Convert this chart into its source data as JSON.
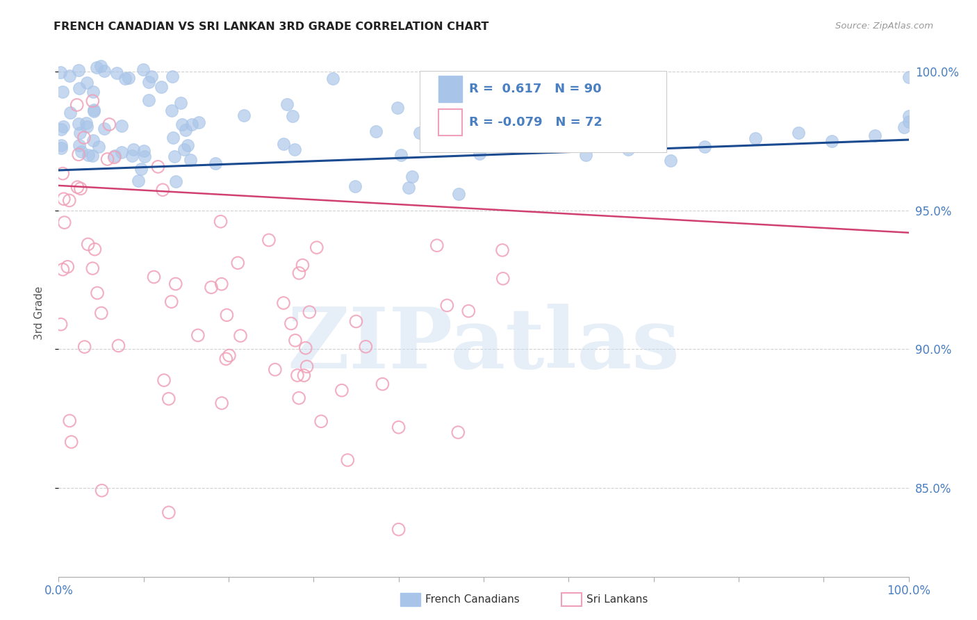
{
  "title": "FRENCH CANADIAN VS SRI LANKAN 3RD GRADE CORRELATION CHART",
  "source": "Source: ZipAtlas.com",
  "ylabel": "3rd Grade",
  "blue_R": "0.617",
  "blue_N": "90",
  "pink_R": "-0.079",
  "pink_N": "72",
  "blue_scatter_color": "#a8c4e8",
  "pink_scatter_color": "#f0a0b8",
  "blue_line_color": "#1a4a90",
  "pink_line_color": "#d04070",
  "grid_color": "#d0d0d0",
  "background_color": "#ffffff",
  "watermark": "ZIPatlas",
  "xlim": [
    0.0,
    1.0
  ],
  "ylim": [
    0.818,
    1.008
  ],
  "ytick_values": [
    1.0,
    0.95,
    0.9,
    0.85
  ],
  "blue_line_x": [
    0.0,
    1.0
  ],
  "blue_line_y": [
    0.9645,
    0.9755
  ],
  "pink_line_x": [
    0.0,
    1.0
  ],
  "pink_line_y": [
    0.959,
    0.942
  ],
  "title_color": "#222222",
  "source_color": "#999999",
  "axis_label_color": "#4a7fc1",
  "ylabel_color": "#555555"
}
